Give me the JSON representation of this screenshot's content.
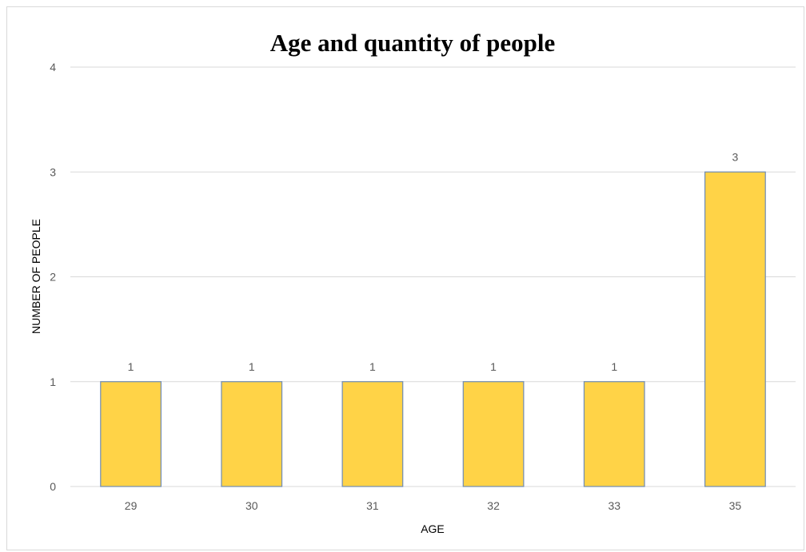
{
  "chart_data": {
    "type": "bar",
    "title": "Age and quantity of people",
    "xlabel": "AGE",
    "ylabel": "NUMBER OF PEOPLE",
    "categories": [
      "29",
      "30",
      "31",
      "32",
      "33",
      "35"
    ],
    "values": [
      1,
      1,
      1,
      1,
      1,
      3
    ],
    "data_labels": [
      "1",
      "1",
      "1",
      "1",
      "1",
      "3"
    ],
    "y_ticks": [
      "0",
      "1",
      "2",
      "3",
      "4"
    ],
    "ylim": [
      0,
      4
    ],
    "grid": true,
    "legend": "none",
    "colors": {
      "bar_fill": "#FFD347",
      "bar_stroke": "#6E8BB5",
      "gridline": "#D9D9D9",
      "tick_text": "#595959"
    }
  }
}
